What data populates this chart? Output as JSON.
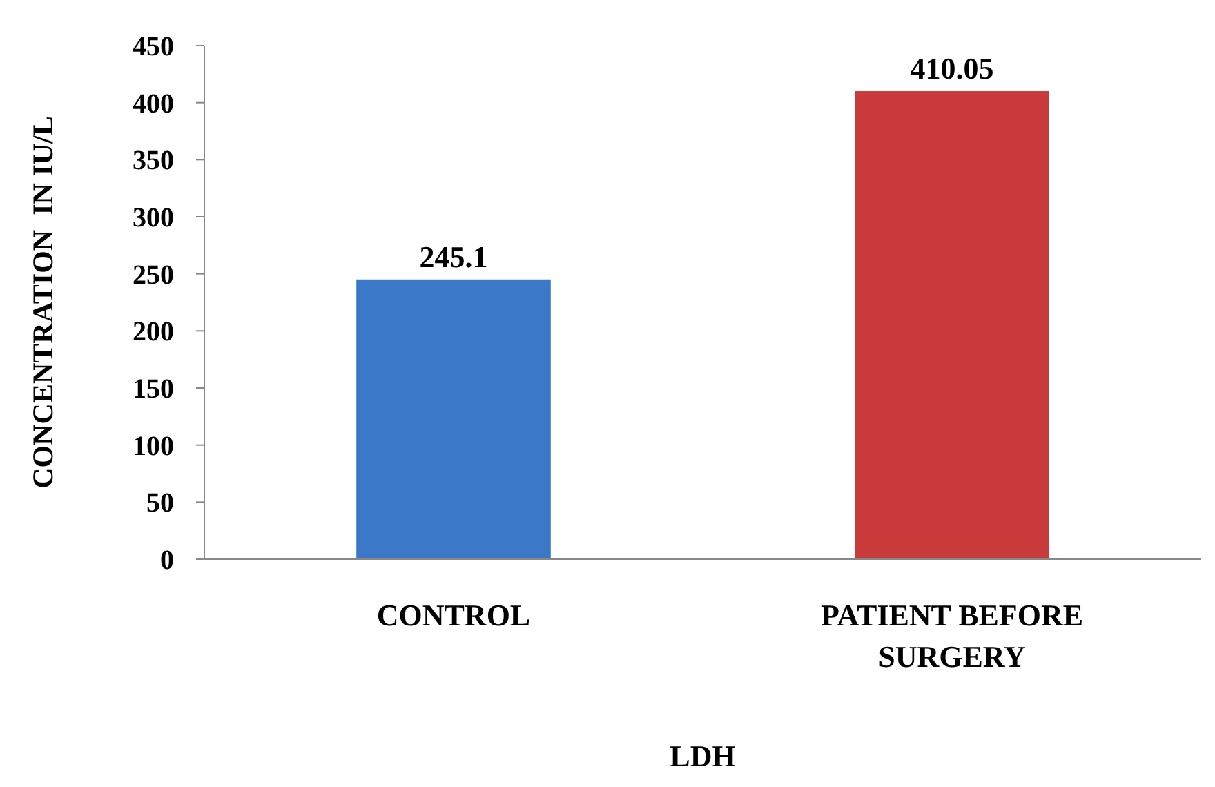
{
  "chart_data": {
    "type": "bar",
    "xlabel": "LDH",
    "ylabel": "CONCENTRATION  IN IU/L",
    "categories": [
      "CONTROL",
      "PATIENT BEFORE SURGERY"
    ],
    "values": [
      245.1,
      410.05
    ],
    "colors": [
      "#3b78c8",
      "#c93a3a"
    ],
    "ylim": [
      0,
      450
    ],
    "yticks": [
      0,
      50,
      100,
      150,
      200,
      250,
      300,
      350,
      400,
      450
    ],
    "data_labels": true,
    "grid": false
  }
}
